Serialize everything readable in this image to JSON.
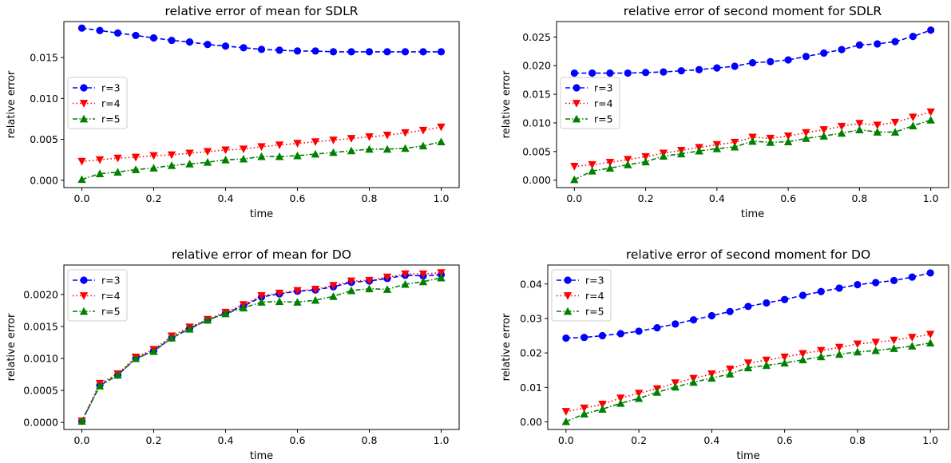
{
  "chart_data": [
    {
      "type": "line",
      "title": "relative error of mean for SDLR",
      "xlabel": "time",
      "ylabel": "relative error",
      "xlim": [
        -0.05,
        1.05
      ],
      "ylim": [
        -0.0009,
        0.0194
      ],
      "xticks": [
        0.0,
        0.2,
        0.4,
        0.6,
        0.8,
        1.0
      ],
      "xtick_labels": [
        "0.0",
        "0.2",
        "0.4",
        "0.6",
        "0.8",
        "1.0"
      ],
      "yticks": [
        0.0,
        0.005,
        0.01,
        0.015
      ],
      "ytick_labels": [
        "0.000",
        "0.005",
        "0.010",
        "0.015"
      ],
      "legend_loc": "center-left",
      "x": [
        0.0,
        0.05,
        0.1,
        0.15,
        0.2,
        0.25,
        0.3,
        0.35,
        0.4,
        0.45,
        0.5,
        0.55,
        0.6,
        0.65,
        0.7,
        0.75,
        0.8,
        0.85,
        0.9,
        0.95,
        1.0
      ],
      "series": [
        {
          "name": "r=3",
          "color": "#0000ff",
          "linestyle": "dashed",
          "marker": "circle",
          "values": [
            0.0186,
            0.0183,
            0.018,
            0.0177,
            0.0174,
            0.0171,
            0.0169,
            0.0166,
            0.0164,
            0.0162,
            0.016,
            0.0159,
            0.0158,
            0.0158,
            0.0157,
            0.0157,
            0.0157,
            0.0157,
            0.0157,
            0.0157,
            0.0157
          ]
        },
        {
          "name": "r=4",
          "color": "#ff0000",
          "linestyle": "dotted",
          "marker": "triangle-down",
          "values": [
            0.0023,
            0.0025,
            0.0027,
            0.0028,
            0.003,
            0.0031,
            0.0033,
            0.0035,
            0.0037,
            0.0038,
            0.0041,
            0.0043,
            0.0045,
            0.0047,
            0.0049,
            0.0051,
            0.0053,
            0.0055,
            0.0058,
            0.0061,
            0.0065
          ]
        },
        {
          "name": "r=5",
          "color": "#008000",
          "linestyle": "dashdot",
          "marker": "triangle-up",
          "values": [
            0.0001,
            0.0008,
            0.001,
            0.0013,
            0.0015,
            0.0018,
            0.002,
            0.0022,
            0.0025,
            0.0026,
            0.0029,
            0.0029,
            0.003,
            0.0032,
            0.0034,
            0.0036,
            0.0038,
            0.0038,
            0.0039,
            0.0042,
            0.0047
          ]
        }
      ]
    },
    {
      "type": "line",
      "title": "relative error of second moment for SDLR",
      "xlabel": "time",
      "ylabel": "relative error",
      "xlim": [
        -0.05,
        1.05
      ],
      "ylim": [
        -0.0013,
        0.0277
      ],
      "xticks": [
        0.0,
        0.2,
        0.4,
        0.6,
        0.8,
        1.0
      ],
      "xtick_labels": [
        "0.0",
        "0.2",
        "0.4",
        "0.6",
        "0.8",
        "1.0"
      ],
      "yticks": [
        0.0,
        0.005,
        0.01,
        0.015,
        0.02,
        0.025
      ],
      "ytick_labels": [
        "0.000",
        "0.005",
        "0.010",
        "0.015",
        "0.020",
        "0.025"
      ],
      "legend_loc": "center-left",
      "x": [
        0.0,
        0.05,
        0.1,
        0.15,
        0.2,
        0.25,
        0.3,
        0.35,
        0.4,
        0.45,
        0.5,
        0.55,
        0.6,
        0.65,
        0.7,
        0.75,
        0.8,
        0.85,
        0.9,
        0.95,
        1.0
      ],
      "series": [
        {
          "name": "r=3",
          "color": "#0000ff",
          "linestyle": "dashed",
          "marker": "circle",
          "values": [
            0.0187,
            0.0187,
            0.0187,
            0.0187,
            0.0188,
            0.0189,
            0.0191,
            0.0193,
            0.0196,
            0.0199,
            0.0205,
            0.0207,
            0.021,
            0.0216,
            0.0222,
            0.0228,
            0.0236,
            0.0238,
            0.0242,
            0.0251,
            0.0262
          ]
        },
        {
          "name": "r=4",
          "color": "#ff0000",
          "linestyle": "dotted",
          "marker": "triangle-down",
          "values": [
            0.0024,
            0.0027,
            0.0031,
            0.0036,
            0.0041,
            0.0047,
            0.0052,
            0.0057,
            0.0062,
            0.0066,
            0.0075,
            0.0073,
            0.0077,
            0.0083,
            0.0088,
            0.0094,
            0.0099,
            0.0096,
            0.0101,
            0.011,
            0.0119
          ]
        },
        {
          "name": "r=5",
          "color": "#008000",
          "linestyle": "dashdot",
          "marker": "triangle-up",
          "values": [
            0.0001,
            0.0016,
            0.0021,
            0.0027,
            0.0032,
            0.0042,
            0.0046,
            0.0051,
            0.0055,
            0.0058,
            0.0068,
            0.0066,
            0.0067,
            0.0073,
            0.0077,
            0.0082,
            0.0088,
            0.0084,
            0.0084,
            0.0095,
            0.0105
          ]
        }
      ]
    },
    {
      "type": "line",
      "title": "relative error of mean for DO",
      "xlabel": "time",
      "ylabel": "relative error",
      "xlim": [
        -0.05,
        1.05
      ],
      "ylim": [
        -0.00011,
        0.00246
      ],
      "xticks": [
        0.0,
        0.2,
        0.4,
        0.6,
        0.8,
        1.0
      ],
      "xtick_labels": [
        "0.0",
        "0.2",
        "0.4",
        "0.6",
        "0.8",
        "1.0"
      ],
      "yticks": [
        0.0,
        0.0005,
        0.001,
        0.0015,
        0.002
      ],
      "ytick_labels": [
        "0.0000",
        "0.0005",
        "0.0010",
        "0.0015",
        "0.0020"
      ],
      "legend_loc": "upper-left",
      "x": [
        0.0,
        0.05,
        0.1,
        0.15,
        0.2,
        0.25,
        0.3,
        0.35,
        0.4,
        0.45,
        0.5,
        0.55,
        0.6,
        0.65,
        0.7,
        0.75,
        0.8,
        0.85,
        0.9,
        0.95,
        1.0
      ],
      "series": [
        {
          "name": "r=3",
          "color": "#0000ff",
          "linestyle": "dashed",
          "marker": "circle",
          "values": [
            2e-05,
            0.00058,
            0.00074,
            0.001,
            0.00112,
            0.00132,
            0.00147,
            0.0016,
            0.00171,
            0.00182,
            0.00196,
            0.00201,
            0.00205,
            0.00207,
            0.00212,
            0.00219,
            0.00221,
            0.00225,
            0.0023,
            0.00229,
            0.00231
          ]
        },
        {
          "name": "r=4",
          "color": "#ff0000",
          "linestyle": "dotted",
          "marker": "triangle-down",
          "values": [
            2e-05,
            0.00061,
            0.00076,
            0.00102,
            0.00114,
            0.00135,
            0.00149,
            0.00161,
            0.00172,
            0.00184,
            0.00198,
            0.00202,
            0.00206,
            0.00208,
            0.00214,
            0.00221,
            0.00222,
            0.00227,
            0.00232,
            0.00232,
            0.00234
          ]
        },
        {
          "name": "r=5",
          "color": "#008000",
          "linestyle": "dashdot",
          "marker": "triangle-up",
          "values": [
            2e-05,
            0.00057,
            0.00074,
            0.001,
            0.00111,
            0.00132,
            0.00146,
            0.0016,
            0.0017,
            0.00179,
            0.00188,
            0.00189,
            0.00188,
            0.00191,
            0.00197,
            0.00206,
            0.00209,
            0.00208,
            0.00216,
            0.0022,
            0.00226
          ]
        }
      ]
    },
    {
      "type": "line",
      "title": "relative error of second moment for DO",
      "xlabel": "time",
      "ylabel": "relative error",
      "xlim": [
        -0.05,
        1.05
      ],
      "ylim": [
        -0.0022,
        0.0455
      ],
      "xticks": [
        0.0,
        0.2,
        0.4,
        0.6,
        0.8,
        1.0
      ],
      "xtick_labels": [
        "0.0",
        "0.2",
        "0.4",
        "0.6",
        "0.8",
        "1.0"
      ],
      "yticks": [
        0.0,
        0.01,
        0.02,
        0.03,
        0.04
      ],
      "ytick_labels": [
        "0.00",
        "0.01",
        "0.02",
        "0.03",
        "0.04"
      ],
      "legend_loc": "upper-left",
      "x": [
        0.0,
        0.05,
        0.1,
        0.15,
        0.2,
        0.25,
        0.3,
        0.35,
        0.4,
        0.45,
        0.5,
        0.55,
        0.6,
        0.65,
        0.7,
        0.75,
        0.8,
        0.85,
        0.9,
        0.95,
        1.0
      ],
      "series": [
        {
          "name": "r=3",
          "color": "#0000ff",
          "linestyle": "dashed",
          "marker": "circle",
          "values": [
            0.0243,
            0.0245,
            0.025,
            0.0256,
            0.0263,
            0.0273,
            0.0284,
            0.0296,
            0.0308,
            0.032,
            0.0335,
            0.0345,
            0.0355,
            0.0367,
            0.0378,
            0.0388,
            0.0398,
            0.0404,
            0.041,
            0.042,
            0.0432
          ]
        },
        {
          "name": "r=4",
          "color": "#ff0000",
          "linestyle": "dotted",
          "marker": "triangle-down",
          "values": [
            0.003,
            0.004,
            0.0051,
            0.0069,
            0.0083,
            0.0096,
            0.0113,
            0.0126,
            0.0139,
            0.0153,
            0.0171,
            0.0179,
            0.0188,
            0.0198,
            0.0207,
            0.0216,
            0.0226,
            0.0231,
            0.0237,
            0.0245,
            0.0254
          ]
        },
        {
          "name": "r=5",
          "color": "#008000",
          "linestyle": "dashdot",
          "marker": "triangle-up",
          "values": [
            0.0001,
            0.0023,
            0.0037,
            0.0054,
            0.0068,
            0.0086,
            0.0101,
            0.0115,
            0.0127,
            0.0139,
            0.0157,
            0.0164,
            0.0171,
            0.018,
            0.0189,
            0.0196,
            0.0203,
            0.0207,
            0.0213,
            0.022,
            0.0229
          ]
        }
      ]
    }
  ]
}
